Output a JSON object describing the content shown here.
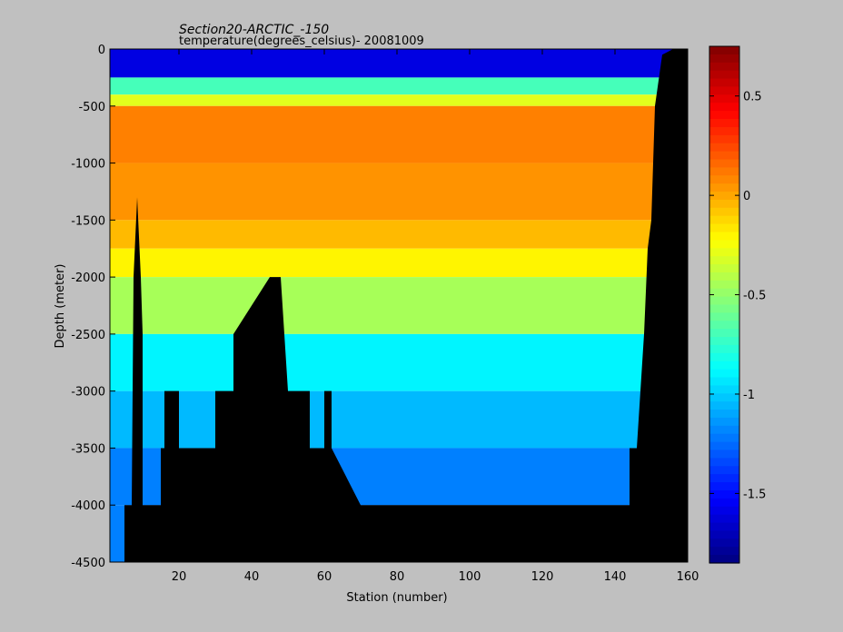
{
  "chart_data": {
    "type": "heatmap",
    "title": "Section20-ARCTIC_-150",
    "subtitle": "temperature(degrees_celsius)- 20081009",
    "xlabel": "Station (number)",
    "ylabel": "Depth (meter)",
    "xlim": [
      1,
      160
    ],
    "ylim": [
      -4500,
      0
    ],
    "x_ticks": [
      20,
      40,
      60,
      80,
      100,
      120,
      140,
      160
    ],
    "y_ticks": [
      0,
      -500,
      -1000,
      -1500,
      -2000,
      -2500,
      -3000,
      -3500,
      -4000,
      -4500
    ],
    "colorbar": {
      "range": [
        -1.85,
        0.75
      ],
      "ticks": [
        0.5,
        0,
        -0.5,
        -1,
        -1.5
      ],
      "colormap": "jet"
    },
    "depth_bands": [
      {
        "top": 0,
        "bottom": -250,
        "value": -1.6
      },
      {
        "top": -250,
        "bottom": -400,
        "value": -0.7
      },
      {
        "top": -400,
        "bottom": -500,
        "value": -0.3
      },
      {
        "top": -500,
        "bottom": -1000,
        "value": 0.1
      },
      {
        "top": -1000,
        "bottom": -1500,
        "value": 0.05
      },
      {
        "top": -1500,
        "bottom": -1750,
        "value": -0.05
      },
      {
        "top": -1750,
        "bottom": -2000,
        "value": -0.2
      },
      {
        "top": -2000,
        "bottom": -2500,
        "value": -0.45
      },
      {
        "top": -2500,
        "bottom": -3000,
        "value": -0.9
      },
      {
        "top": -3000,
        "bottom": -3500,
        "value": -1.05
      },
      {
        "top": -3500,
        "bottom": -4000,
        "value": -1.2
      },
      {
        "top": -4000,
        "bottom": -4500,
        "value": -1.2
      }
    ],
    "bottom_depth": [
      [
        1,
        -4500
      ],
      [
        5,
        -4500
      ],
      [
        5,
        -4000
      ],
      [
        6,
        -4000
      ],
      [
        7,
        -4000
      ],
      [
        7.5,
        -2000
      ],
      [
        8.5,
        -1300
      ],
      [
        9.5,
        -2000
      ],
      [
        10,
        -2500
      ],
      [
        10,
        -4000
      ],
      [
        15,
        -4000
      ],
      [
        15,
        -3500
      ],
      [
        16,
        -3500
      ],
      [
        16,
        -3000
      ],
      [
        20,
        -3000
      ],
      [
        20,
        -3500
      ],
      [
        30,
        -3500
      ],
      [
        30,
        -3000
      ],
      [
        35,
        -3000
      ],
      [
        35,
        -2500
      ],
      [
        45,
        -2000
      ],
      [
        48,
        -2000
      ],
      [
        49,
        -2500
      ],
      [
        50,
        -3000
      ],
      [
        56,
        -3000
      ],
      [
        56,
        -3500
      ],
      [
        60,
        -3500
      ],
      [
        60,
        -3000
      ],
      [
        62,
        -3000
      ],
      [
        62,
        -3500
      ],
      [
        70,
        -4000
      ],
      [
        144,
        -4000
      ],
      [
        144,
        -3500
      ],
      [
        146,
        -3500
      ],
      [
        147,
        -3000
      ],
      [
        148,
        -2500
      ],
      [
        149,
        -1750
      ],
      [
        150,
        -1500
      ],
      [
        151,
        -500
      ],
      [
        153,
        -50
      ],
      [
        156,
        0
      ],
      [
        160,
        0
      ]
    ]
  }
}
